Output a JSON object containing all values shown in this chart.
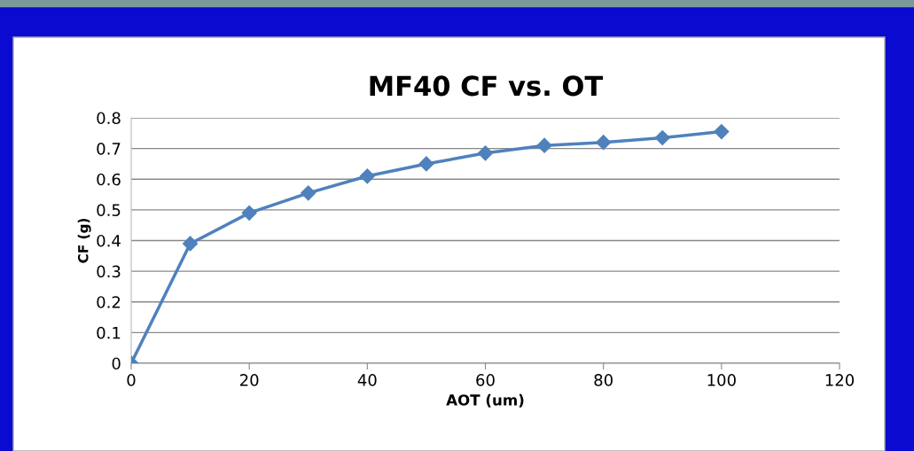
{
  "chart_data": {
    "type": "line",
    "title": "MF40 CF vs. OT",
    "xlabel": "AOT (um)",
    "ylabel": "CF (g)",
    "x": [
      0,
      10,
      20,
      30,
      40,
      50,
      60,
      70,
      80,
      90,
      100
    ],
    "series": [
      {
        "color": "#4f81bd",
        "values": [
          0,
          0.39,
          0.49,
          0.555,
          0.61,
          0.65,
          0.685,
          0.71,
          0.72,
          0.735,
          0.755
        ]
      }
    ],
    "xlim": [
      0,
      120
    ],
    "xticks": [
      0,
      20,
      40,
      60,
      80,
      100,
      120
    ],
    "ylim": [
      0,
      0.8
    ],
    "yticks": [
      0,
      0.1,
      0.2,
      0.3,
      0.4,
      0.5,
      0.6,
      0.7,
      0.8
    ],
    "grid": "y",
    "marker": "diamond",
    "line_style": "solid",
    "legend": false
  }
}
